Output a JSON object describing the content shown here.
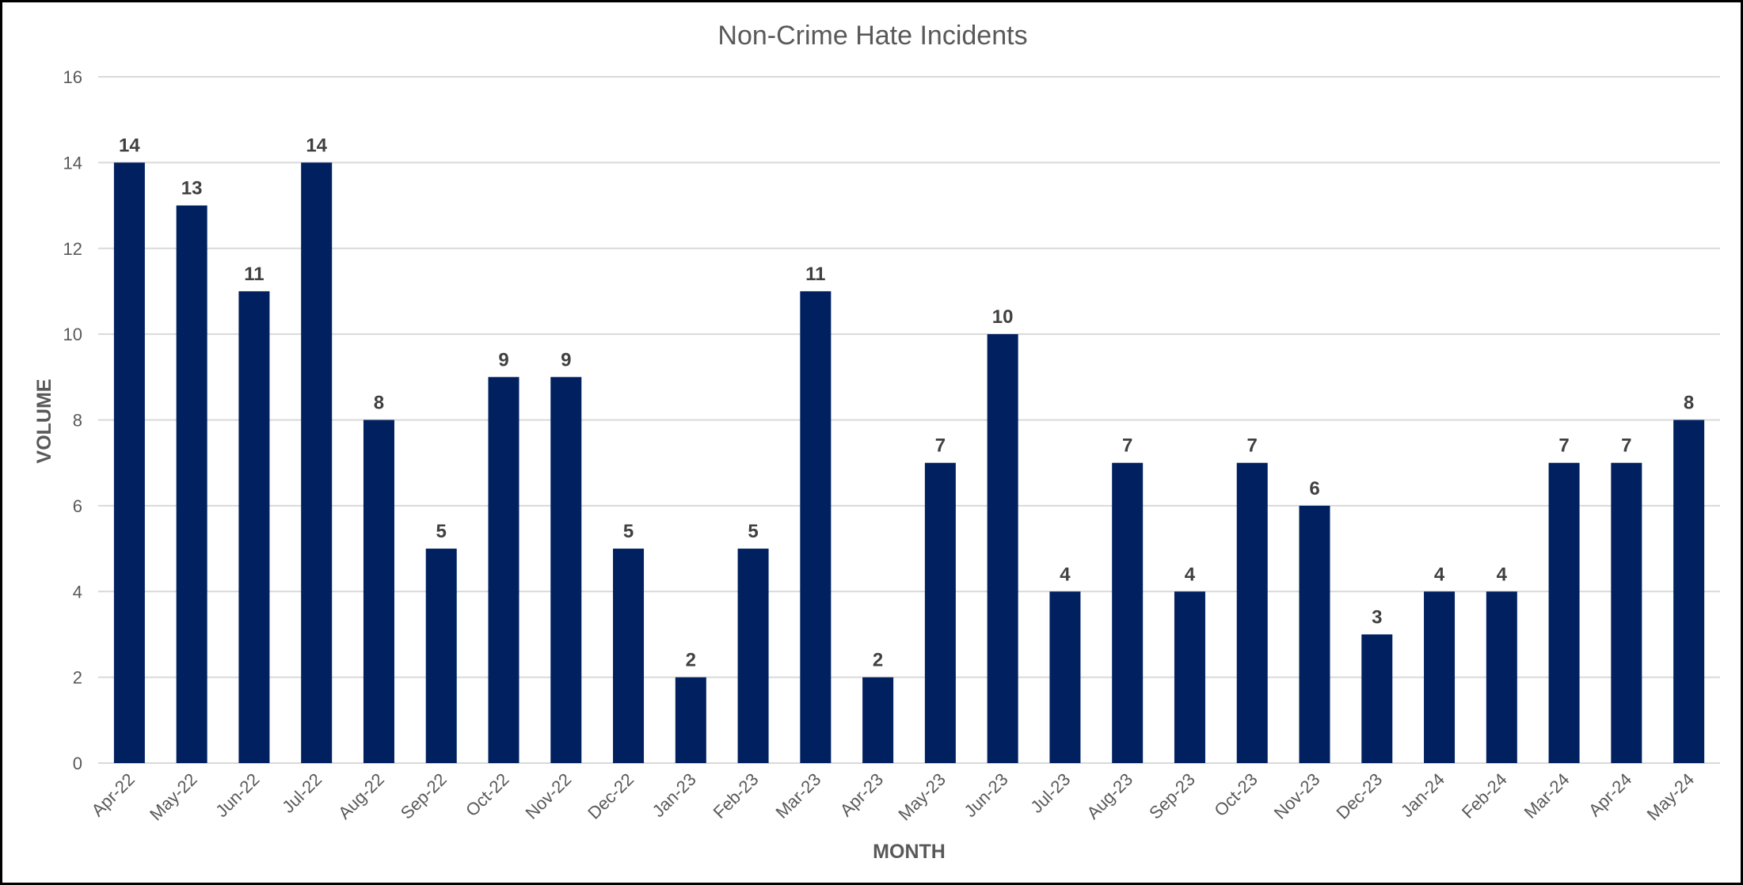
{
  "chart_data": {
    "type": "bar",
    "title": "Non-Crime Hate Incidents",
    "xlabel": "MONTH",
    "ylabel": "VOLUME",
    "ylim": [
      0,
      16
    ],
    "yticks": [
      0,
      2,
      4,
      6,
      8,
      10,
      12,
      14,
      16
    ],
    "grid": true,
    "legend": "none",
    "bar_color": "#002060",
    "categories": [
      "Apr-22",
      "May-22",
      "Jun-22",
      "Jul-22",
      "Aug-22",
      "Sep-22",
      "Oct-22",
      "Nov-22",
      "Dec-22",
      "Jan-23",
      "Feb-23",
      "Mar-23",
      "Apr-23",
      "May-23",
      "Jun-23",
      "Jul-23",
      "Aug-23",
      "Sep-23",
      "Oct-23",
      "Nov-23",
      "Dec-23",
      "Jan-24",
      "Feb-24",
      "Mar-24",
      "Apr-24",
      "May-24"
    ],
    "values": [
      14,
      13,
      11,
      14,
      8,
      5,
      9,
      9,
      5,
      2,
      5,
      11,
      2,
      7,
      10,
      4,
      7,
      4,
      7,
      6,
      3,
      4,
      4,
      7,
      7,
      8
    ]
  }
}
